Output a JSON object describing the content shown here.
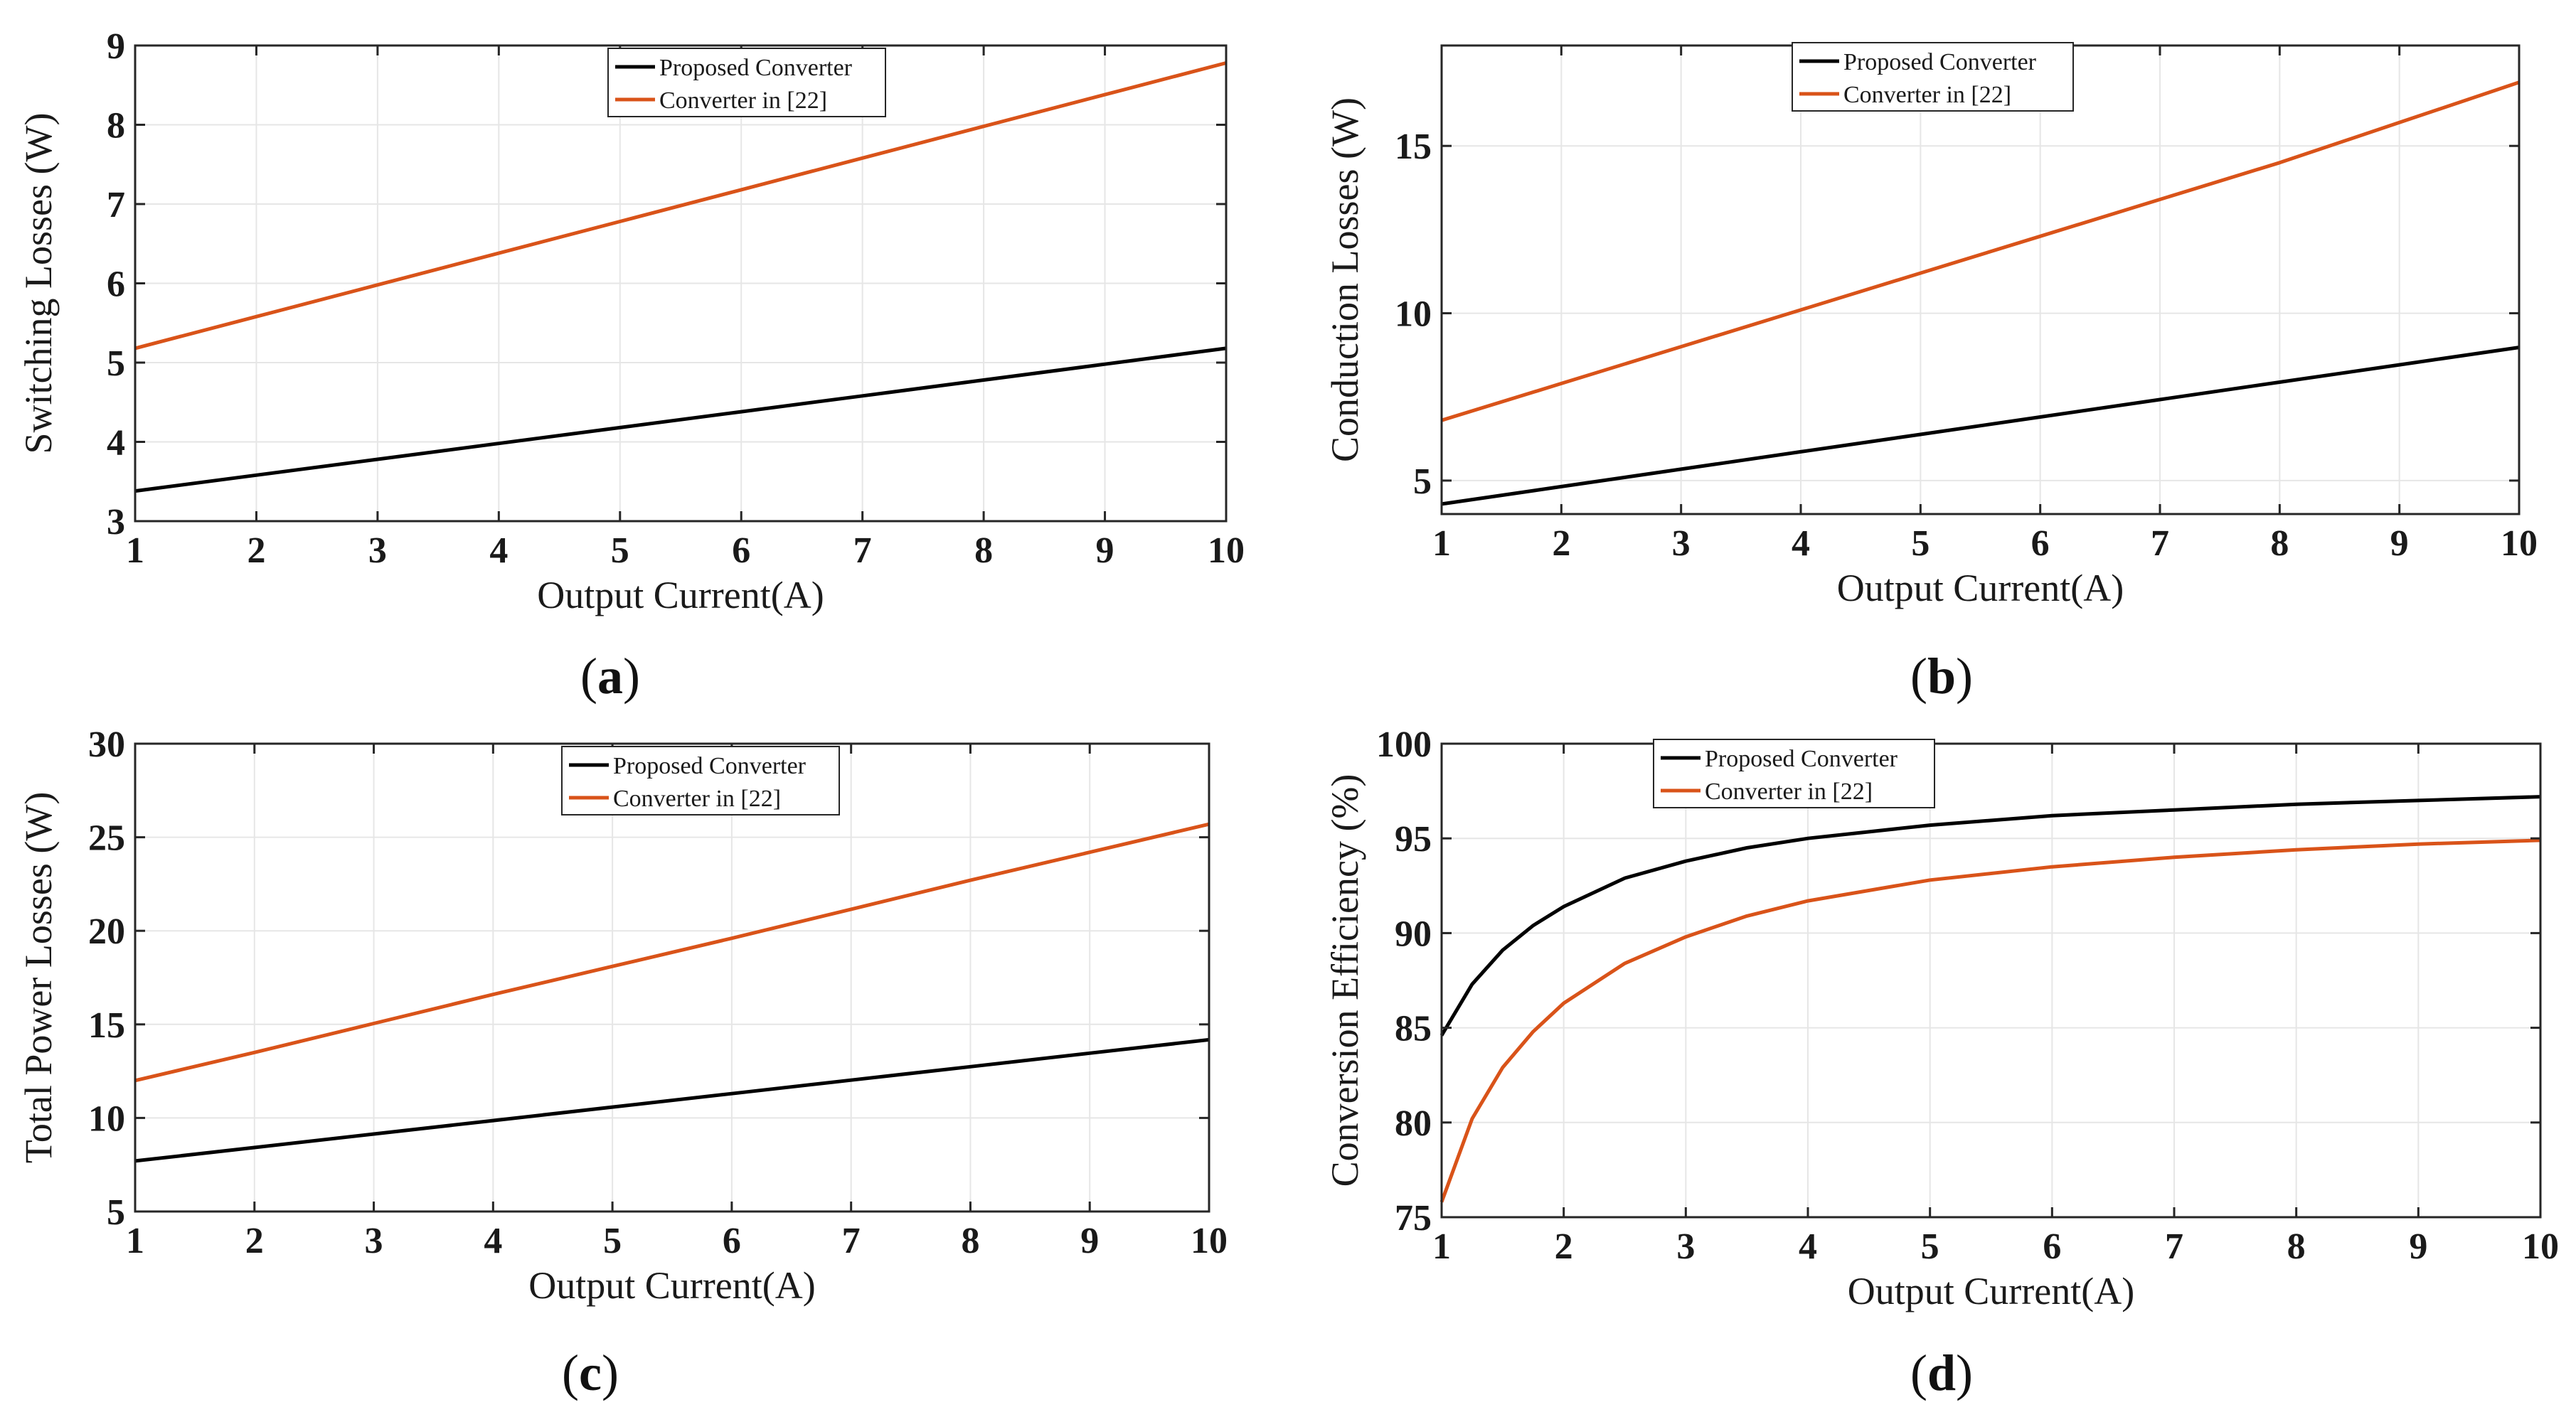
{
  "figure": {
    "colors": {
      "proposed": "#000000",
      "converter22": "#d95319",
      "grid": "#e6e6e6",
      "axis": "#262626"
    }
  },
  "chart_data": [
    {
      "id": "a",
      "type": "line",
      "caption_letter": "a",
      "xlabel": "Output Current(A)",
      "ylabel": "Switching Losses (W)",
      "xlim": [
        1,
        10
      ],
      "ylim": [
        3,
        9
      ],
      "xticks": [
        1,
        2,
        3,
        4,
        5,
        6,
        7,
        8,
        9,
        10
      ],
      "yticks": [
        3,
        4,
        5,
        6,
        7,
        8,
        9
      ],
      "legend_position": "top-center",
      "series": [
        {
          "name": "Proposed Converter",
          "color_key": "proposed",
          "x": [
            1,
            2,
            3,
            4,
            5,
            6,
            7,
            8,
            9,
            10
          ],
          "y": [
            3.38,
            3.58,
            3.78,
            3.98,
            4.18,
            4.38,
            4.58,
            4.78,
            4.98,
            5.18
          ]
        },
        {
          "name": "Converter in [22]",
          "color_key": "converter22",
          "x": [
            1,
            2,
            3,
            4,
            5,
            6,
            7,
            8,
            9,
            10
          ],
          "y": [
            5.18,
            5.58,
            5.98,
            6.38,
            6.78,
            7.18,
            7.58,
            7.98,
            8.38,
            8.78
          ]
        }
      ]
    },
    {
      "id": "b",
      "type": "line",
      "caption_letter": "b",
      "xlabel": "Output Current(A)",
      "ylabel": "Conduction Losses (W)",
      "xlim": [
        1,
        10
      ],
      "ylim": [
        4,
        18
      ],
      "xticks": [
        1,
        2,
        3,
        4,
        5,
        6,
        7,
        8,
        9,
        10
      ],
      "yticks": [
        5,
        10,
        15
      ],
      "legend_position": "top-center",
      "series": [
        {
          "name": "Proposed Converter",
          "color_key": "proposed",
          "x": [
            1,
            2,
            3,
            4,
            5,
            6,
            7,
            8,
            9,
            10
          ],
          "y": [
            4.3,
            4.82,
            5.34,
            5.86,
            6.38,
            6.9,
            7.42,
            7.94,
            8.46,
            8.98
          ]
        },
        {
          "name": "Converter in [22]",
          "color_key": "converter22",
          "x": [
            1,
            2,
            3,
            4,
            5,
            6,
            7,
            8,
            9,
            10
          ],
          "y": [
            6.8,
            7.9,
            9.0,
            10.1,
            11.2,
            12.3,
            13.4,
            14.5,
            15.7,
            16.9
          ]
        }
      ]
    },
    {
      "id": "c",
      "type": "line",
      "caption_letter": "c",
      "xlabel": "Output Current(A)",
      "ylabel": "Total Power Losses (W)",
      "xlim": [
        1,
        10
      ],
      "ylim": [
        5,
        30
      ],
      "xticks": [
        1,
        2,
        3,
        4,
        5,
        6,
        7,
        8,
        9,
        10
      ],
      "yticks": [
        5,
        10,
        15,
        20,
        25,
        30
      ],
      "legend_position": "top-center",
      "series": [
        {
          "name": "Proposed Converter",
          "color_key": "proposed",
          "x": [
            1,
            2,
            3,
            4,
            5,
            6,
            7,
            8,
            9,
            10
          ],
          "y": [
            7.7,
            8.42,
            9.14,
            9.86,
            10.58,
            11.3,
            12.02,
            12.74,
            13.46,
            14.18
          ]
        },
        {
          "name": "Converter in [22]",
          "color_key": "converter22",
          "x": [
            1,
            2,
            3,
            4,
            5,
            6,
            7,
            8,
            9,
            10
          ],
          "y": [
            12.0,
            13.5,
            15.05,
            16.6,
            18.1,
            19.6,
            21.15,
            22.7,
            24.2,
            25.7
          ]
        }
      ]
    },
    {
      "id": "d",
      "type": "line",
      "caption_letter": "d",
      "xlabel": "Output Current(A)",
      "ylabel": "Conversion Efficiency (%)",
      "xlim": [
        1,
        10
      ],
      "ylim": [
        75,
        100
      ],
      "xticks": [
        1,
        2,
        3,
        4,
        5,
        6,
        7,
        8,
        9,
        10
      ],
      "yticks": [
        75,
        80,
        85,
        90,
        95,
        100
      ],
      "legend_position": "top-left",
      "series": [
        {
          "name": "Proposed Converter",
          "color_key": "proposed",
          "x": [
            1,
            1.25,
            1.5,
            1.75,
            2,
            2.5,
            3,
            3.5,
            4,
            5,
            6,
            7,
            8,
            9,
            10
          ],
          "y": [
            84.6,
            87.3,
            89.1,
            90.4,
            91.4,
            92.9,
            93.8,
            94.5,
            95.0,
            95.7,
            96.2,
            96.5,
            96.8,
            97.0,
            97.2
          ]
        },
        {
          "name": "Converter in [22]",
          "color_key": "converter22",
          "x": [
            1,
            1.25,
            1.5,
            1.75,
            2,
            2.5,
            3,
            3.5,
            4,
            5,
            6,
            7,
            8,
            9,
            10
          ],
          "y": [
            75.8,
            80.2,
            82.9,
            84.8,
            86.3,
            88.4,
            89.8,
            90.9,
            91.7,
            92.8,
            93.5,
            94.0,
            94.4,
            94.7,
            94.9
          ]
        }
      ]
    }
  ]
}
